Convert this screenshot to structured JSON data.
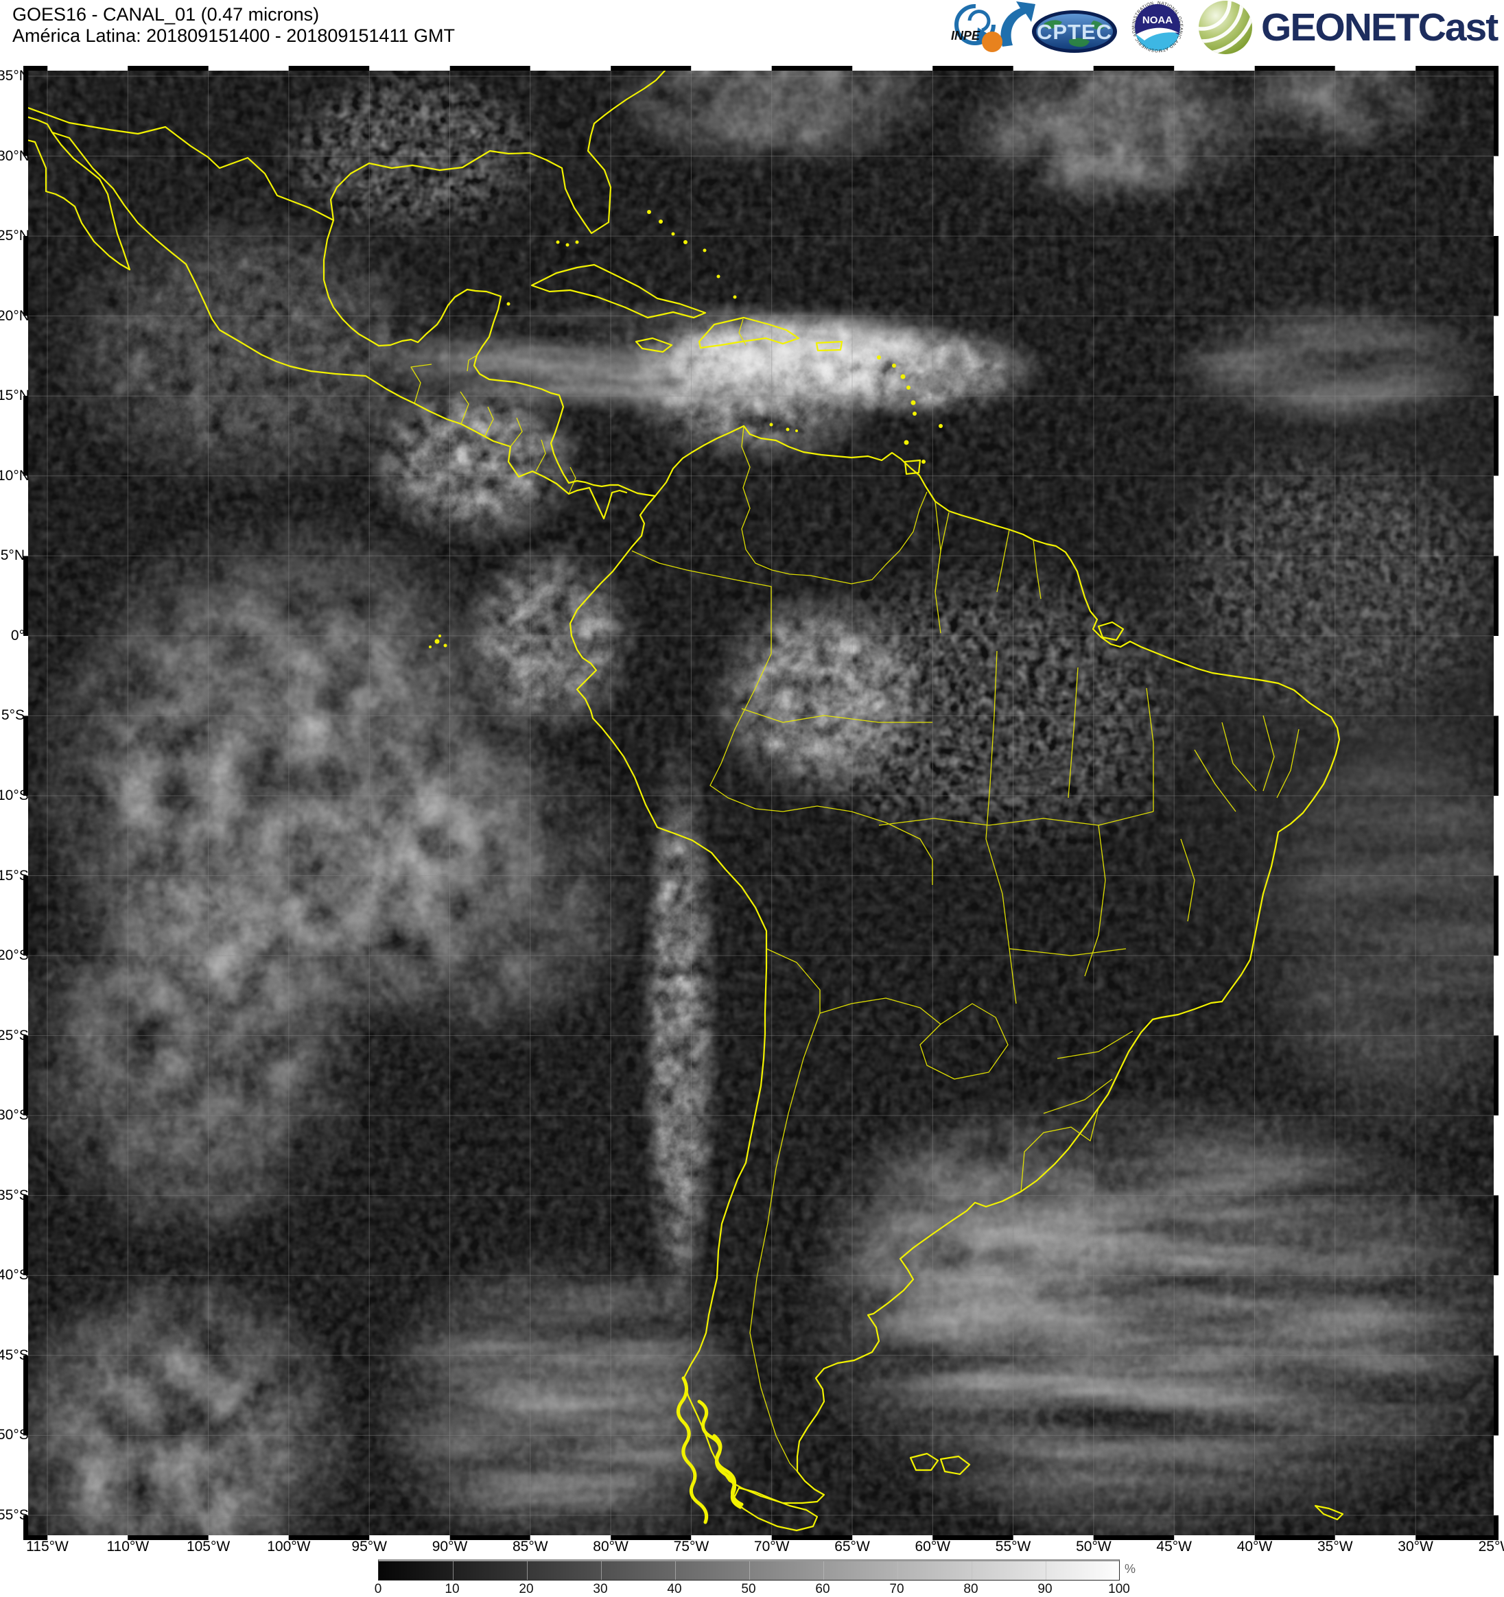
{
  "header": {
    "title": "GOES16 - CANAL_01 (0.47 microns)",
    "subtitle": "América Latina: 201809151400 - 201809151411 GMT"
  },
  "logos": {
    "inpe_label": "INPE",
    "cptec_label": "CPTEC",
    "noaa_label": "NOAA",
    "noaa_ring_text": "NATIONAL OCEANIC AND ATMOSPHERIC ADMINISTRATION",
    "geonetcast_label": "GEONETCast"
  },
  "map": {
    "boundary_color": "#f2f200",
    "lat_labels": [
      "35°N",
      "30°N",
      "25°N",
      "20°N",
      "15°N",
      "10°N",
      "5°N",
      "0°",
      "5°S",
      "10°S",
      "15°S",
      "20°S",
      "25°S",
      "30°S",
      "35°S",
      "40°S",
      "45°S",
      "50°S",
      "55°S"
    ],
    "lon_labels": [
      "115°W",
      "110°W",
      "105°W",
      "100°W",
      "95°W",
      "90°W",
      "85°W",
      "80°W",
      "75°W",
      "70°W",
      "65°W",
      "60°W",
      "55°W",
      "50°W",
      "45°W",
      "40°W",
      "35°W",
      "30°W",
      "25°W"
    ]
  },
  "colorbar": {
    "tick_labels": [
      "0",
      "10",
      "20",
      "30",
      "40",
      "50",
      "60",
      "70",
      "80",
      "90",
      "100"
    ],
    "unit_label": "%",
    "min_color": "#000000",
    "max_color": "#ffffff"
  }
}
